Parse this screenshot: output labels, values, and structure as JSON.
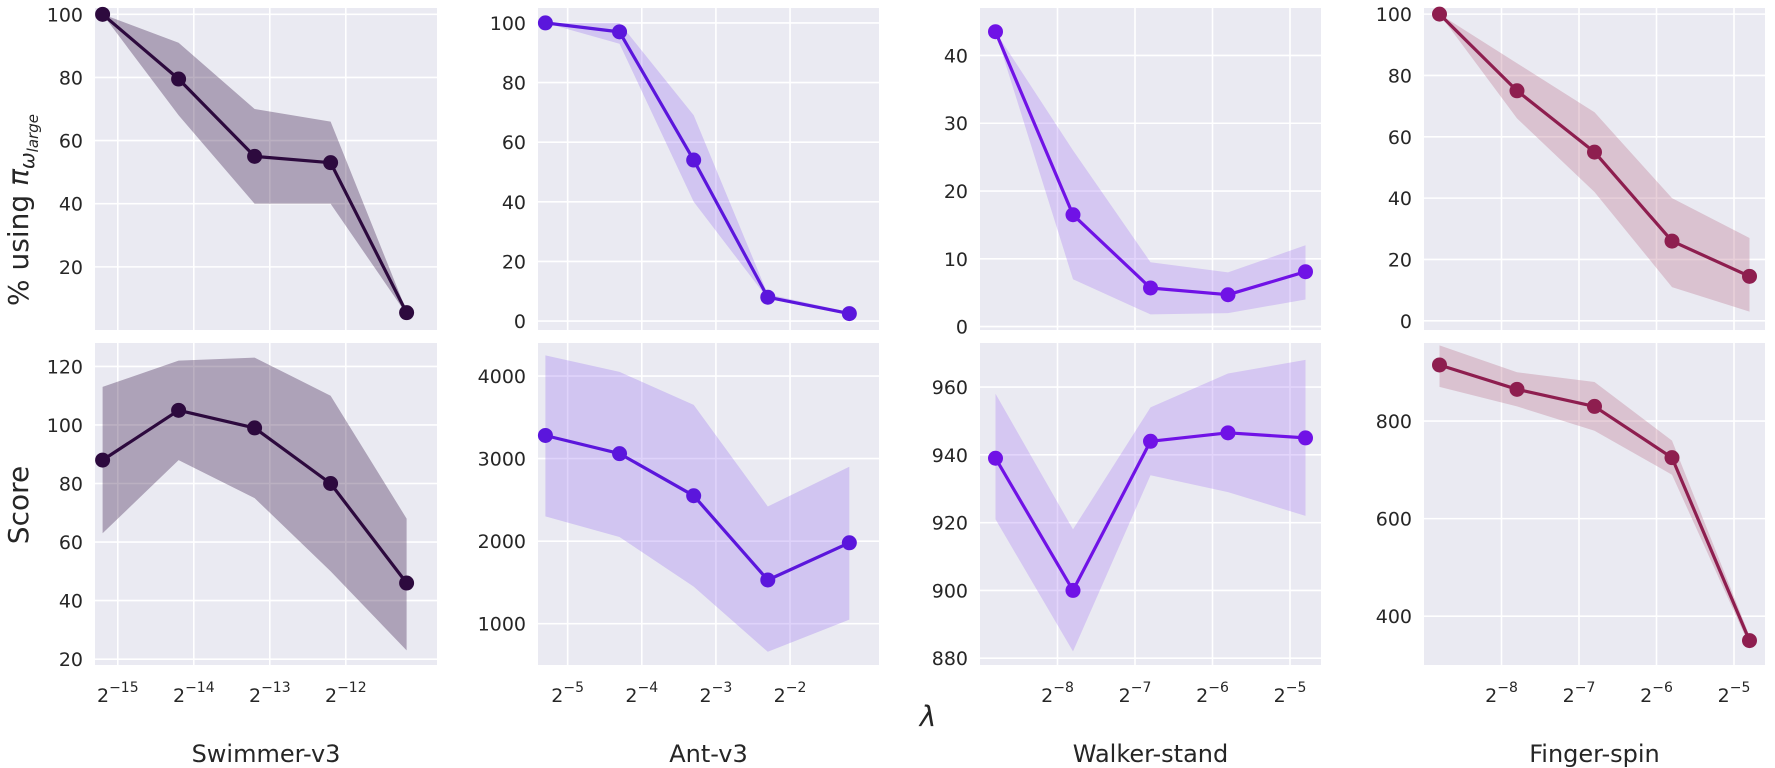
{
  "figure": {
    "xlabel": "λ",
    "ylabel_top_prefix": "% using ",
    "ylabel_top_symbol": "π",
    "ylabel_top_subscript": "ω",
    "ylabel_top_subsubscript": "large",
    "ylabel_bottom": "Score"
  },
  "chart_data": [
    {
      "env": "Swimmer-v3",
      "color": "#2d0a3e",
      "band_color": "#2d0a3e",
      "xticks": [
        {
          "exp": -15,
          "label": "2",
          "sup": "−15"
        },
        {
          "exp": -14,
          "label": "2",
          "sup": "−14"
        },
        {
          "exp": -13,
          "label": "2",
          "sup": "−13"
        },
        {
          "exp": -12,
          "label": "2",
          "sup": "−12"
        }
      ],
      "xlim": [
        -15.3,
        -10.8
      ],
      "x": [
        -15.2,
        -14.2,
        -13.2,
        -12.2,
        -11.2
      ],
      "top": {
        "type": "line",
        "ylim": [
          0,
          102
        ],
        "yticks": [
          20,
          40,
          60,
          80,
          100
        ],
        "y": [
          100,
          79.5,
          55,
          53,
          5.5
        ],
        "lo": [
          100,
          68,
          40,
          40,
          5
        ],
        "hi": [
          100,
          91,
          70,
          66,
          6
        ]
      },
      "bottom": {
        "type": "line",
        "ylim": [
          18,
          128
        ],
        "yticks": [
          20,
          40,
          60,
          80,
          100,
          120
        ],
        "y": [
          88,
          105,
          99,
          80,
          46
        ],
        "lo": [
          63,
          88,
          75,
          50,
          23
        ],
        "hi": [
          113,
          122,
          123,
          110,
          68
        ]
      }
    },
    {
      "env": "Ant-v3",
      "color": "#5b16dc",
      "band_color": "#9d77f0",
      "xticks": [
        {
          "exp": -5,
          "label": "2",
          "sup": "−5"
        },
        {
          "exp": -4,
          "label": "2",
          "sup": "−4"
        },
        {
          "exp": -3,
          "label": "2",
          "sup": "−3"
        },
        {
          "exp": -2,
          "label": "2",
          "sup": "−2"
        }
      ],
      "xlim": [
        -5.4,
        -0.8
      ],
      "x": [
        -5.3,
        -4.3,
        -3.3,
        -2.3,
        -1.2
      ],
      "top": {
        "type": "line",
        "ylim": [
          -3,
          105
        ],
        "yticks": [
          0,
          20,
          40,
          60,
          80,
          100
        ],
        "y": [
          100,
          97,
          54,
          8,
          2.5
        ],
        "lo": [
          100,
          93,
          40,
          7.5,
          2
        ],
        "hi": [
          100,
          100,
          69,
          9,
          3
        ]
      },
      "bottom": {
        "type": "line",
        "ylim": [
          500,
          4400
        ],
        "yticks": [
          1000,
          2000,
          3000,
          4000
        ],
        "y": [
          3280,
          3060,
          2550,
          1530,
          1980
        ],
        "lo": [
          2300,
          2050,
          1450,
          660,
          1050
        ],
        "hi": [
          4250,
          4050,
          3650,
          2420,
          2900
        ]
      }
    },
    {
      "env": "Walker-stand",
      "color": "#7012e6",
      "band_color": "#a77cf2",
      "xticks": [
        {
          "exp": -8,
          "label": "2",
          "sup": "−8"
        },
        {
          "exp": -7,
          "label": "2",
          "sup": "−7"
        },
        {
          "exp": -6,
          "label": "2",
          "sup": "−6"
        },
        {
          "exp": -5,
          "label": "2",
          "sup": "−5"
        }
      ],
      "xlim": [
        -9.0,
        -4.6
      ],
      "x": [
        -8.8,
        -7.8,
        -6.8,
        -5.8,
        -4.8
      ],
      "top": {
        "type": "line",
        "ylim": [
          -0.5,
          47
        ],
        "yticks": [
          0,
          10,
          20,
          30,
          40
        ],
        "y": [
          43.5,
          16.5,
          5.7,
          4.7,
          8.1
        ],
        "lo": [
          43.5,
          7,
          1.8,
          2,
          4
        ],
        "hi": [
          43.5,
          26,
          9.5,
          8,
          12
        ]
      },
      "bottom": {
        "type": "line",
        "ylim": [
          878,
          973
        ],
        "yticks": [
          880,
          900,
          920,
          940,
          960
        ],
        "y": [
          939,
          900,
          944,
          946.5,
          945
        ],
        "lo": [
          921,
          882,
          934,
          929,
          922
        ],
        "hi": [
          958,
          918,
          954,
          964,
          968
        ]
      }
    },
    {
      "env": "Finger-spin",
      "color": "#8e1e4f",
      "band_color": "#b86c88",
      "xticks": [
        {
          "exp": -8,
          "label": "2",
          "sup": "−8"
        },
        {
          "exp": -7,
          "label": "2",
          "sup": "−7"
        },
        {
          "exp": -6,
          "label": "2",
          "sup": "−6"
        },
        {
          "exp": -5,
          "label": "2",
          "sup": "−5"
        }
      ],
      "xlim": [
        -9.0,
        -4.6
      ],
      "x": [
        -8.8,
        -7.8,
        -6.8,
        -5.8,
        -4.8
      ],
      "top": {
        "type": "line",
        "ylim": [
          -3,
          102
        ],
        "yticks": [
          0,
          20,
          40,
          60,
          80,
          100
        ],
        "y": [
          100,
          75,
          55,
          26,
          14.5
        ],
        "lo": [
          100,
          66,
          42,
          11,
          3
        ],
        "hi": [
          100,
          84,
          68,
          40,
          27
        ]
      },
      "bottom": {
        "type": "line",
        "ylim": [
          300,
          960
        ],
        "yticks": [
          400,
          600,
          800
        ],
        "y": [
          915,
          865,
          830,
          725,
          350
        ],
        "lo": [
          870,
          830,
          780,
          690,
          340
        ],
        "hi": [
          955,
          900,
          880,
          760,
          360
        ]
      }
    }
  ]
}
